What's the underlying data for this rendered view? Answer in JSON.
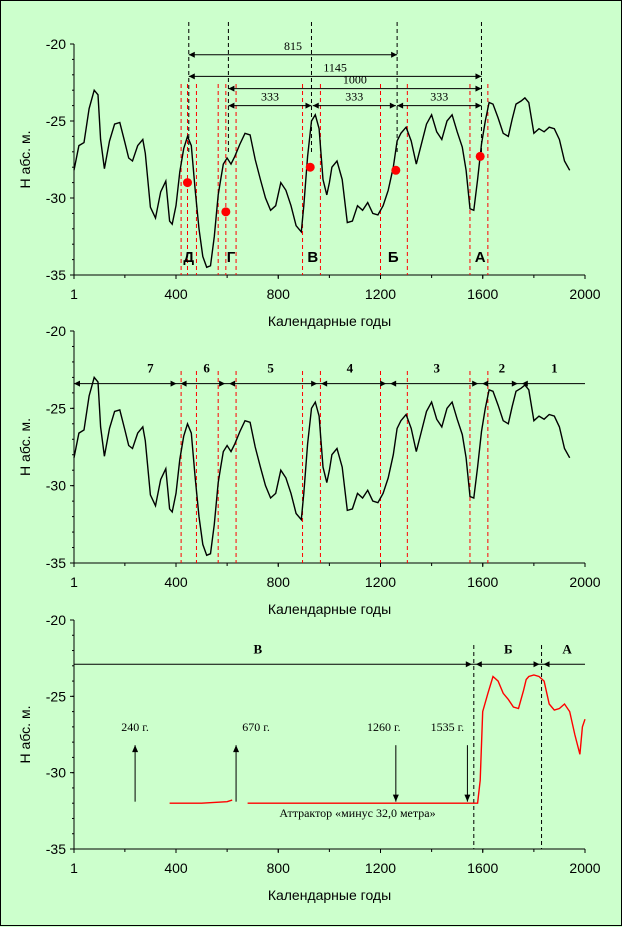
{
  "chart_data": [
    {
      "type": "line",
      "xlabel": "Календарные годы",
      "ylabel": "Н абс. м.",
      "xlim": [
        1,
        2000
      ],
      "ylim": [
        -35,
        -20
      ],
      "xticks": [
        "1",
        "400",
        "800",
        "1200",
        "1600",
        "2000"
      ],
      "yticks": [
        "-20",
        "-25",
        "-30",
        "-35"
      ],
      "series": [
        {
          "x": [
            1,
            20,
            40,
            60,
            80,
            95,
            105,
            120,
            140,
            160,
            180,
            200,
            215,
            230,
            250,
            270,
            280,
            300,
            320,
            340,
            360,
            375,
            385,
            400,
            415,
            430,
            445,
            460,
            475,
            490,
            505,
            520,
            535,
            550,
            565,
            575,
            585,
            600,
            615,
            630,
            650,
            670,
            690,
            710,
            730,
            750,
            770,
            790,
            810,
            830,
            850,
            870,
            890,
            900,
            915,
            930,
            945,
            960,
            975,
            990,
            1000,
            1010,
            1030,
            1050,
            1070,
            1090,
            1110,
            1130,
            1150,
            1170,
            1190,
            1210,
            1230,
            1250,
            1265,
            1280,
            1300,
            1320,
            1340,
            1360,
            1380,
            1400,
            1420,
            1440,
            1460,
            1480,
            1500,
            1520,
            1535,
            1550,
            1565,
            1580,
            1595,
            1610,
            1625,
            1640,
            1660,
            1680,
            1700,
            1715,
            1730,
            1750,
            1765,
            1780,
            1800,
            1820,
            1840,
            1860,
            1880,
            1900,
            1920,
            1940
          ],
          "y": [
            -28.2,
            -26.6,
            -26.4,
            -24.2,
            -23.0,
            -23.3,
            -26.2,
            -28.1,
            -26.3,
            -25.2,
            -25.1,
            -26.4,
            -27.4,
            -27.6,
            -26.6,
            -26.2,
            -27.1,
            -30.6,
            -31.3,
            -29.6,
            -28.9,
            -31.5,
            -31.7,
            -30.5,
            -28.3,
            -26.8,
            -26.0,
            -26.6,
            -29.5,
            -32.0,
            -33.8,
            -34.5,
            -34.4,
            -32.5,
            -29.8,
            -28.8,
            -27.8,
            -27.4,
            -27.8,
            -27.3,
            -26.5,
            -25.8,
            -25.9,
            -27.5,
            -28.8,
            -30.0,
            -30.8,
            -30.5,
            -29.0,
            -29.5,
            -30.5,
            -31.8,
            -32.2,
            -30.5,
            -27.3,
            -25.0,
            -24.6,
            -25.5,
            -28.8,
            -29.8,
            -29.0,
            -28.0,
            -27.6,
            -28.8,
            -31.6,
            -31.5,
            -30.5,
            -30.8,
            -30.3,
            -31.0,
            -31.1,
            -30.5,
            -29.5,
            -28.0,
            -26.3,
            -25.8,
            -25.4,
            -26.3,
            -27.8,
            -26.5,
            -25.2,
            -24.6,
            -25.7,
            -26.2,
            -25.0,
            -24.6,
            -25.7,
            -26.7,
            -28.2,
            -30.7,
            -30.8,
            -28.8,
            -26.5,
            -25.0,
            -23.8,
            -23.9,
            -24.8,
            -25.8,
            -26.0,
            -24.9,
            -23.9,
            -23.7,
            -23.5,
            -23.8,
            -25.8,
            -25.5,
            -25.7,
            -25.4,
            -25.5,
            -26.2,
            -27.6,
            -28.2
          ]
        }
      ],
      "annotations": {
        "dashed_lines_x": [
          420,
          445,
          480,
          565,
          595,
          635,
          895,
          965,
          1200,
          1305,
          1550,
          1620
        ],
        "letters": [
          {
            "t": "Д",
            "x": 450
          },
          {
            "t": "Г",
            "x": 615
          },
          {
            "t": "В",
            "x": 935
          },
          {
            "t": "Б",
            "x": 1250
          },
          {
            "t": "А",
            "x": 1590
          }
        ],
        "red_points": [
          {
            "x": 445,
            "y": -29.0
          },
          {
            "x": 595,
            "y": -30.9
          },
          {
            "x": 925,
            "y": -28.0
          },
          {
            "x": 1260,
            "y": -28.2
          },
          {
            "x": 1590,
            "y": -27.3
          }
        ],
        "spans": [
          {
            "label": "815",
            "x1": 450,
            "x2": 1265,
            "y": -20.7
          },
          {
            "label": "1145",
            "x1": 450,
            "x2": 1595,
            "y": -22.1
          },
          {
            "label": "1000",
            "x1": 605,
            "x2": 1595,
            "y": -22.9
          },
          {
            "label": "333",
            "x1": 605,
            "x2": 930,
            "y": -24.0
          },
          {
            "label": "333",
            "x1": 935,
            "x2": 1260,
            "y": -24.0
          },
          {
            "label": "333",
            "x1": 1265,
            "x2": 1595,
            "y": -24.0
          }
        ]
      }
    },
    {
      "type": "line",
      "xlabel": "Календарные годы",
      "ylabel": "Н абс. м.",
      "xlim": [
        1,
        2000
      ],
      "ylim": [
        -35,
        -20
      ],
      "xticks": [
        "1",
        "400",
        "800",
        "1200",
        "1600",
        "2000"
      ],
      "yticks": [
        "-20",
        "-25",
        "-30",
        "-35"
      ],
      "series_same_as_top": true,
      "annotations": {
        "level_line_y": -23.4,
        "dashed_lines_x": [
          420,
          480,
          565,
          635,
          895,
          965,
          1200,
          1305,
          1550,
          1620
        ],
        "arrows_x": [
          1,
          410,
          600,
          960,
          1230,
          1590,
          1745,
          2000
        ],
        "segments": [
          {
            "t": "7",
            "x": 300
          },
          {
            "t": "6",
            "x": 520
          },
          {
            "t": "5",
            "x": 770
          },
          {
            "t": "4",
            "x": 1080
          },
          {
            "t": "3",
            "x": 1420
          },
          {
            "t": "2",
            "x": 1675
          },
          {
            "t": "1",
            "x": 1880
          }
        ]
      }
    },
    {
      "type": "line",
      "xlabel": "Календарные годы",
      "ylabel": "Н абс. м.",
      "xlim": [
        1,
        2000
      ],
      "ylim": [
        -35,
        -20
      ],
      "xticks": [
        "1",
        "400",
        "800",
        "1200",
        "1600",
        "2000"
      ],
      "yticks": [
        "-20",
        "-25",
        "-30",
        "-35"
      ],
      "series": [
        {
          "x": [
            375,
            450,
            500,
            600,
            620,
            630,
            680,
            700,
            800,
            900,
            1000,
            1100,
            1200,
            1300,
            1400,
            1500,
            1580,
            1590,
            1600,
            1620,
            1640,
            1660,
            1680,
            1700,
            1720,
            1740,
            1760,
            1770,
            1780,
            1800,
            1820,
            1840,
            1860,
            1880,
            1900,
            1920,
            1940,
            1960,
            1980,
            1990,
            2000
          ],
          "y": [
            -32.0,
            -32.0,
            -32.0,
            -31.9,
            -31.8,
            null,
            -32.0,
            -32.0,
            -32.0,
            -32.0,
            -32.0,
            -32.0,
            -32.0,
            -32.0,
            -32.0,
            -32.0,
            -32.0,
            -30.5,
            -26.0,
            -24.8,
            -23.7,
            -24.0,
            -24.8,
            -25.2,
            -25.7,
            -25.8,
            -24.6,
            -23.9,
            -23.7,
            -23.6,
            -23.7,
            -24.0,
            -25.5,
            -25.9,
            -25.8,
            -25.5,
            -26.0,
            -27.5,
            -28.8,
            -27.0,
            -26.5
          ],
          "color": "#ff0000"
        }
      ],
      "annotations": {
        "level_line_y": -22.9,
        "dashed_lines_x": [
          1565,
          1830
        ],
        "arrows_x": [
          1,
          1565,
          1830,
          2000
        ],
        "segments": [
          {
            "t": "В",
            "x": 720
          },
          {
            "t": "Б",
            "x": 1700
          },
          {
            "t": "А",
            "x": 1930
          }
        ],
        "events_up": [
          {
            "label": "240 г.",
            "x": 240
          },
          {
            "label": "670 г.",
            "x": 635
          }
        ],
        "events_down": [
          {
            "label": "1260 г.",
            "x": 1260
          },
          {
            "label": "1535 г.",
            "x": 1540
          }
        ],
        "attractor_label": "Аттрактор «минус 32,0 метра»"
      }
    }
  ]
}
